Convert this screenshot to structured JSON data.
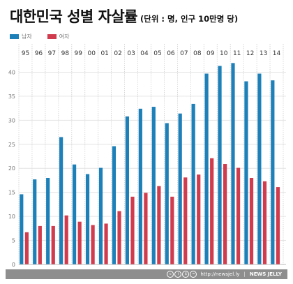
{
  "header": {
    "title": "대한민국 성별 자살률",
    "unit": "(단위 : 명, 인구 10만명 당)"
  },
  "legend": [
    {
      "label": "남자",
      "color": "#1d80b8"
    },
    {
      "label": "여자",
      "color": "#d03c4d"
    }
  ],
  "footer": {
    "url": "http://newsjel.ly",
    "brand": "NEWS JELLY"
  },
  "chart_data": {
    "type": "bar",
    "categories": [
      "95",
      "96",
      "97",
      "98",
      "99",
      "00",
      "01",
      "02",
      "03",
      "04",
      "05",
      "06",
      "07",
      "08",
      "09",
      "10",
      "11",
      "12",
      "13",
      "14"
    ],
    "series": [
      {
        "name": "남자",
        "color": "#1d80b8",
        "values": [
          14.6,
          17.7,
          18.0,
          26.5,
          20.8,
          18.8,
          20.1,
          24.6,
          30.8,
          32.4,
          32.8,
          29.4,
          31.4,
          33.4,
          39.7,
          41.3,
          41.9,
          38.1,
          39.7,
          38.3
        ]
      },
      {
        "name": "여자",
        "color": "#d03c4d",
        "values": [
          6.7,
          8.0,
          8.0,
          10.2,
          8.9,
          8.2,
          8.5,
          11.1,
          14.1,
          14.9,
          16.3,
          14.1,
          18.1,
          18.7,
          22.1,
          20.9,
          20.1,
          18.0,
          17.3,
          16.1
        ]
      }
    ],
    "yticks": [
      0,
      5,
      10,
      15,
      20,
      25,
      30,
      35,
      40
    ],
    "ylim": [
      0,
      45
    ],
    "grid": true,
    "legend_position": "top-left"
  }
}
